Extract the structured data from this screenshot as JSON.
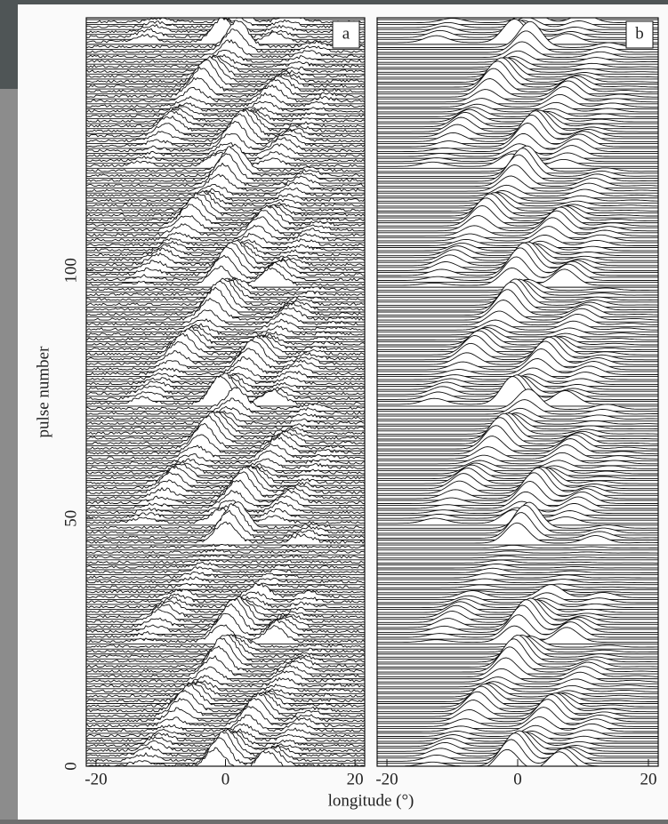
{
  "chart_data": [
    {
      "type": "pulse-stack",
      "panel_label": "a",
      "ylabel": "pulse number",
      "xlabel": "longitude (°)",
      "xlim": [
        -21.5,
        21.5
      ],
      "xticks": [
        -20,
        0,
        20
      ],
      "ylim": [
        0,
        151
      ],
      "yticks": [
        0,
        50,
        100
      ],
      "style": "noisy"
    },
    {
      "type": "pulse-stack",
      "panel_label": "b",
      "xlim": [
        -21.5,
        21.5
      ],
      "xticks": [
        -20,
        0,
        20
      ],
      "ylim": [
        0,
        151
      ],
      "style": "smooth"
    }
  ]
}
